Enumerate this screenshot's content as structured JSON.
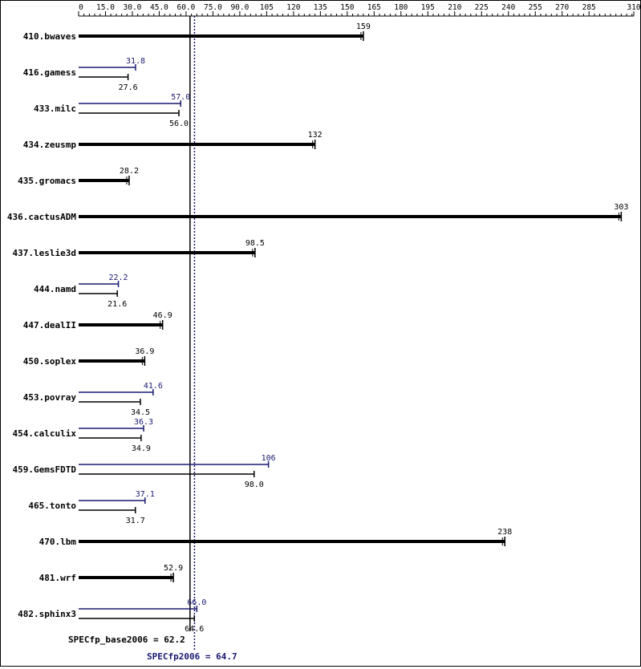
{
  "chart_data": {
    "type": "bar",
    "orientation": "horizontal",
    "axis": {
      "position": "top",
      "min": 0,
      "max": 310,
      "ticks": [
        0,
        15.0,
        30.0,
        45.0,
        60.0,
        75.0,
        90.0,
        105,
        120,
        135,
        150,
        165,
        180,
        195,
        210,
        225,
        240,
        255,
        270,
        285,
        310
      ],
      "tick_labels": [
        "0",
        "15.0",
        "30.0",
        "45.0",
        "60.0",
        "75.0",
        "90.0",
        "105",
        "120",
        "135",
        "150",
        "165",
        "180",
        "195",
        "210",
        "225",
        "240",
        "255",
        "270",
        "285",
        "310"
      ]
    },
    "grid": false,
    "colors": {
      "base": "#000000",
      "peak": "#191970"
    },
    "benchmarks": [
      {
        "name": "410.bwaves",
        "base": 159,
        "base_label": "159",
        "peak": null,
        "peak_label": ""
      },
      {
        "name": "416.gamess",
        "base": 27.6,
        "base_label": "27.6",
        "peak": 31.8,
        "peak_label": "31.8"
      },
      {
        "name": "433.milc",
        "base": 56.0,
        "base_label": "56.0",
        "peak": 57.0,
        "peak_label": "57.0"
      },
      {
        "name": "434.zeusmp",
        "base": 132,
        "base_label": "132",
        "peak": null,
        "peak_label": ""
      },
      {
        "name": "435.gromacs",
        "base": 28.2,
        "base_label": "28.2",
        "peak": null,
        "peak_label": ""
      },
      {
        "name": "436.cactusADM",
        "base": 303,
        "base_label": "303",
        "peak": null,
        "peak_label": ""
      },
      {
        "name": "437.leslie3d",
        "base": 98.5,
        "base_label": "98.5",
        "peak": null,
        "peak_label": ""
      },
      {
        "name": "444.namd",
        "base": 21.6,
        "base_label": "21.6",
        "peak": 22.2,
        "peak_label": "22.2"
      },
      {
        "name": "447.dealII",
        "base": 46.9,
        "base_label": "46.9",
        "peak": null,
        "peak_label": ""
      },
      {
        "name": "450.soplex",
        "base": 36.9,
        "base_label": "36.9",
        "peak": null,
        "peak_label": ""
      },
      {
        "name": "453.povray",
        "base": 34.5,
        "base_label": "34.5",
        "peak": 41.6,
        "peak_label": "41.6"
      },
      {
        "name": "454.calculix",
        "base": 34.9,
        "base_label": "34.9",
        "peak": 36.3,
        "peak_label": "36.3"
      },
      {
        "name": "459.GemsFDTD",
        "base": 98.0,
        "base_label": "98.0",
        "peak": 106,
        "peak_label": "106"
      },
      {
        "name": "465.tonto",
        "base": 31.7,
        "base_label": "31.7",
        "peak": 37.1,
        "peak_label": "37.1"
      },
      {
        "name": "470.lbm",
        "base": 238,
        "base_label": "238",
        "peak": null,
        "peak_label": ""
      },
      {
        "name": "481.wrf",
        "base": 52.9,
        "base_label": "52.9",
        "peak": null,
        "peak_label": ""
      },
      {
        "name": "482.sphinx3",
        "base": 64.6,
        "base_label": "64.6",
        "peak": 66.0,
        "peak_label": "66.0"
      }
    ],
    "summary": {
      "base": {
        "label": "SPECfp_base2006 = 62.2",
        "value": 62.2
      },
      "peak": {
        "label": "SPECfp2006 = 64.7",
        "value": 64.7
      }
    }
  }
}
